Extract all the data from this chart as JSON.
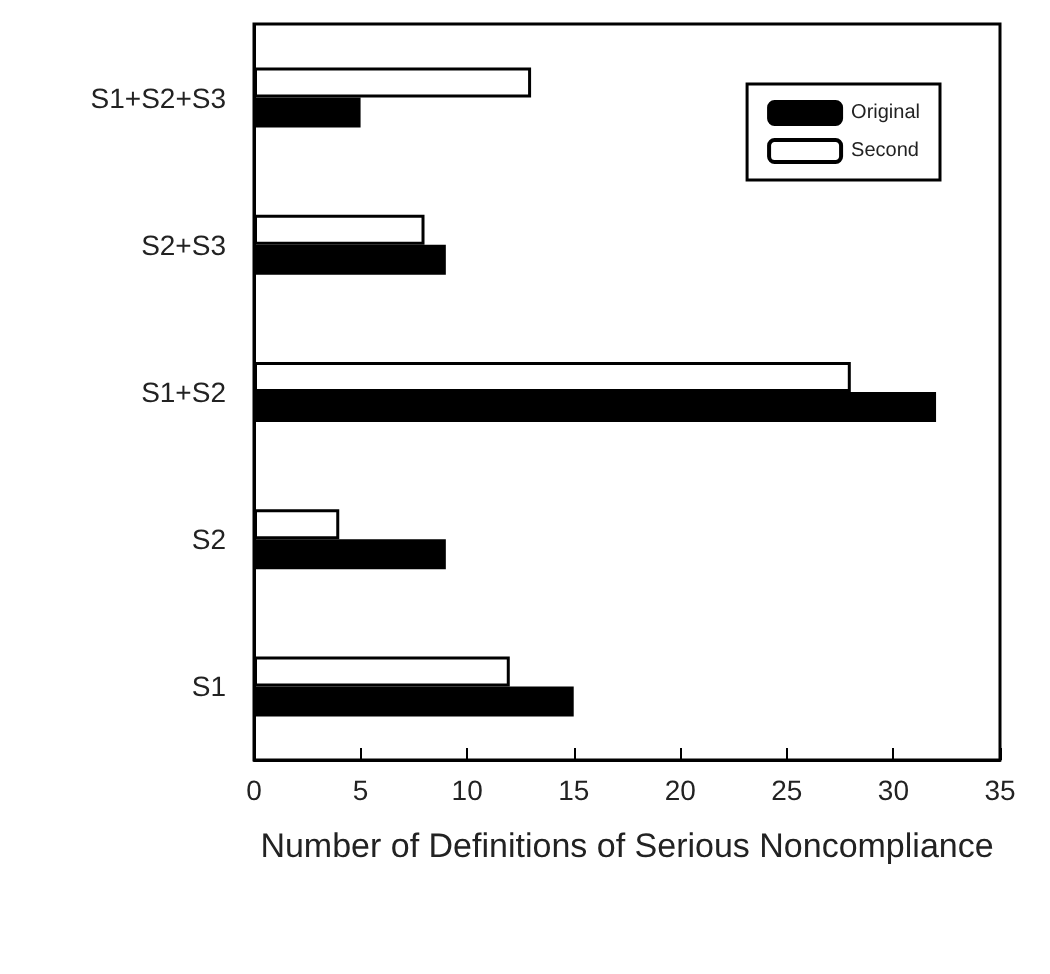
{
  "chart_data": {
    "type": "bar",
    "orientation": "horizontal",
    "xlabel": "Number of Definitions of Serious Noncompliance",
    "categories": [
      "S1+S2+S3",
      "S2+S3",
      "S1+S2",
      "S2",
      "S1"
    ],
    "series": [
      {
        "name": "Original",
        "color": "#000000",
        "values": [
          5,
          9,
          32,
          9,
          15
        ]
      },
      {
        "name": "Second",
        "color": "#ffffff",
        "values": [
          13,
          8,
          28,
          4,
          12
        ]
      }
    ],
    "xlim": [
      0,
      35
    ],
    "xticks": [
      0,
      5,
      10,
      15,
      20,
      25,
      30,
      35
    ],
    "grid": false,
    "legend": "top right"
  }
}
